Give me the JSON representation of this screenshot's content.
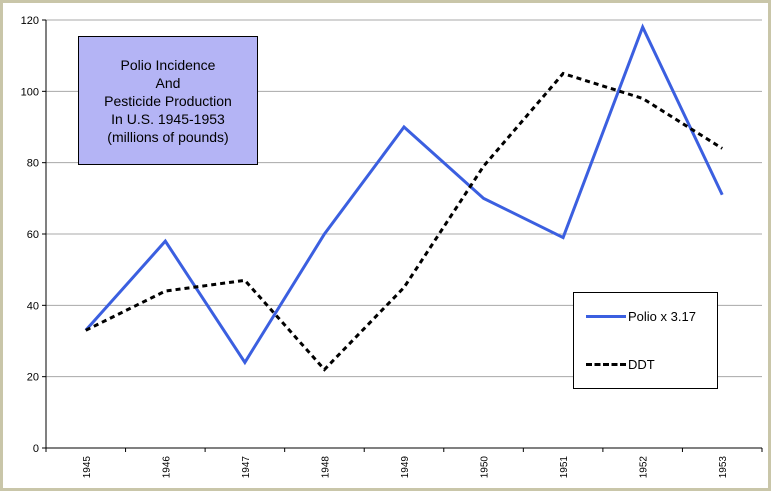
{
  "chart_data": {
    "type": "line",
    "title_lines": [
      "Polio Incidence",
      "And",
      "Pesticide Production",
      "In U.S. 1945-1953",
      "(millions of pounds)"
    ],
    "categories": [
      "1945",
      "1946",
      "1947",
      "1948",
      "1949",
      "1950",
      "1951",
      "1952",
      "1953"
    ],
    "ylim": [
      0,
      120
    ],
    "yticks": [
      "0",
      "20",
      "40",
      "60",
      "80",
      "100",
      "120"
    ],
    "grid": true,
    "legend_position": "right",
    "series": [
      {
        "name": "Polio x 3.17",
        "color": "#3b5fe0",
        "style": "solid",
        "values": [
          33,
          58,
          24,
          60,
          90,
          70,
          59,
          118,
          71
        ]
      },
      {
        "name": "DDT",
        "color": "#000000",
        "style": "dashed",
        "values": [
          33,
          44,
          47,
          22,
          45,
          79,
          105,
          98,
          84
        ]
      }
    ]
  }
}
